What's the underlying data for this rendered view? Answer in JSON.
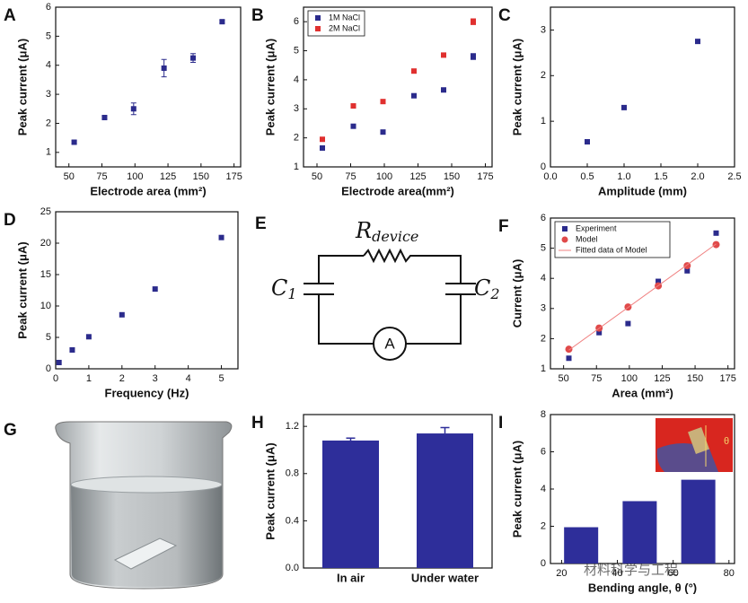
{
  "chart_data": [
    {
      "type": "scatter",
      "panel": "A",
      "xlabel": "Electrode area (mm²)",
      "ylabel": "Peak current (μA)",
      "xlim": [
        40,
        180
      ],
      "xticks": [
        50,
        75,
        100,
        125,
        150,
        175
      ],
      "ylim": [
        0.5,
        6
      ],
      "yticks": [
        1,
        2,
        3,
        4,
        5,
        6
      ],
      "x": [
        54,
        77,
        99,
        122,
        144,
        166
      ],
      "series": [
        {
          "name": "",
          "color": "#2b2b8c",
          "marker": "square",
          "values": [
            1.35,
            2.2,
            2.5,
            3.9,
            4.25,
            5.5
          ],
          "errors": [
            0.05,
            0.05,
            0.2,
            0.3,
            0.15,
            0.05
          ]
        }
      ]
    },
    {
      "type": "scatter",
      "panel": "B",
      "xlabel": "Electrode area(mm²)",
      "ylabel": "Peak current (μA)",
      "xlim": [
        40,
        180
      ],
      "xticks": [
        50,
        75,
        100,
        125,
        150,
        175
      ],
      "ylim": [
        1,
        6.5
      ],
      "yticks": [
        1,
        2,
        3,
        4,
        5,
        6
      ],
      "legend": "upper left",
      "x": [
        54,
        77,
        99,
        122,
        144,
        166
      ],
      "series": [
        {
          "name": "1M NaCl",
          "color": "#2b2b8c",
          "marker": "square",
          "values": [
            1.65,
            2.4,
            2.2,
            3.45,
            3.65,
            4.8
          ],
          "errors": [
            0.05,
            0.05,
            0.05,
            0.05,
            0.05,
            0.1
          ]
        },
        {
          "name": "2M NaCl",
          "color": "#e0302f",
          "marker": "square",
          "values": [
            1.95,
            3.1,
            3.25,
            4.3,
            4.85,
            6.0
          ],
          "errors": [
            0.05,
            0.05,
            0.05,
            0.05,
            0.05,
            0.1
          ]
        }
      ]
    },
    {
      "type": "scatter",
      "panel": "C",
      "xlabel": "Amplitude (mm)",
      "ylabel": "Peak current (μA)",
      "xlim": [
        0,
        2.5
      ],
      "xticks": [
        {
          "value": 0,
          "label": "0.0"
        },
        0.5,
        {
          "value": 1,
          "label": "1.0"
        },
        1.5,
        {
          "value": 2,
          "label": "2.0"
        },
        2.5
      ],
      "ylim": [
        0,
        3.5
      ],
      "yticks": [
        0,
        1,
        2,
        3
      ],
      "x": [
        0.5,
        1,
        2
      ],
      "series": [
        {
          "name": "",
          "color": "#2b2b8c",
          "marker": "square",
          "values": [
            0.55,
            1.3,
            2.75
          ]
        }
      ]
    },
    {
      "type": "scatter",
      "panel": "D",
      "xlabel": "Frequency (Hz)",
      "ylabel": "Peak current (μA)",
      "xlim": [
        0,
        5.5
      ],
      "xticks": [
        0,
        1,
        2,
        3,
        4,
        5
      ],
      "ylim": [
        0,
        25
      ],
      "yticks": [
        0,
        5,
        10,
        15,
        20,
        25
      ],
      "x": [
        0.1,
        0.5,
        1,
        2,
        3,
        5
      ],
      "series": [
        {
          "name": "",
          "color": "#2b2b8c",
          "marker": "square",
          "values": [
            1,
            3,
            5.1,
            8.6,
            12.7,
            20.9
          ]
        }
      ]
    },
    {
      "type": "scatter",
      "panel": "F",
      "xlabel": "Area (mm²)",
      "ylabel": "Current (μA)",
      "xlim": [
        40,
        180
      ],
      "xticks": [
        50,
        75,
        100,
        125,
        150,
        175
      ],
      "ylim": [
        1,
        6
      ],
      "yticks": [
        1,
        2,
        3,
        4,
        5,
        6
      ],
      "legend": "upper left",
      "x": [
        54,
        77,
        99,
        122,
        144,
        166
      ],
      "series": [
        {
          "name": "Experiment",
          "color": "#2b2b8c",
          "marker": "square",
          "values": [
            1.35,
            2.2,
            2.5,
            3.9,
            4.25,
            5.5
          ]
        },
        {
          "name": "Model",
          "color": "#e04a4a",
          "marker": "circle",
          "values": [
            1.65,
            2.35,
            3.05,
            3.75,
            4.42,
            5.12
          ]
        },
        {
          "name": "Fitted data of Model",
          "color": "#f08080",
          "marker": "line",
          "x": [
            54,
            166
          ],
          "values": [
            1.62,
            5.14
          ]
        }
      ]
    },
    {
      "type": "bar",
      "panel": "H",
      "ylabel": "Peak current (μA)",
      "color": "#2e2e9a",
      "categories": [
        "In air",
        "Under water"
      ],
      "values": [
        1.08,
        1.14
      ],
      "errors": [
        0.02,
        0.05
      ],
      "ylim": [
        0,
        1.3
      ],
      "yticks": [
        {
          "value": 0,
          "label": "0.0"
        },
        0.4,
        0.8,
        1.2
      ]
    },
    {
      "type": "bar",
      "panel": "I",
      "xlabel": "Bending angle, θ (°)",
      "ylabel": "Peak current (μA)",
      "color": "#2e2e9a",
      "x": [
        27,
        48,
        69
      ],
      "values": [
        1.95,
        3.35,
        4.5
      ],
      "xlim": [
        16,
        82
      ],
      "xticks": [
        20,
        40,
        60,
        80
      ],
      "ylim": [
        0,
        8
      ],
      "yticks": [
        0,
        2,
        4,
        6,
        8
      ],
      "inset_label": "θ"
    }
  ],
  "circuit": {
    "panel": "E",
    "resistor": "R",
    "resistor_subscript": "device",
    "capacitors": [
      {
        "symbol": "C",
        "subscript": "1"
      },
      {
        "symbol": "C",
        "subscript": "2"
      }
    ],
    "meter": "A"
  },
  "photo": {
    "panel": "G"
  },
  "watermark": "材料科学与工程"
}
